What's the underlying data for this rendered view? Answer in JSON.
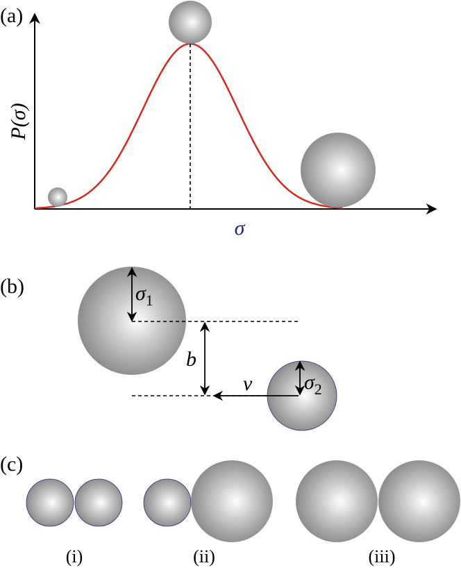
{
  "panel_a": {
    "label": "(a)",
    "y_axis_label": "P(σ)",
    "x_axis_label": "σ"
  },
  "panel_b": {
    "label": "(b)",
    "radius_1": {
      "symbol": "σ",
      "subscript": "1"
    },
    "impact_parameter": "b",
    "velocity": "v",
    "radius_2": {
      "symbol": "σ",
      "subscript": "2"
    }
  },
  "panel_c": {
    "label": "(c)",
    "cases": [
      "(i)",
      "(ii)",
      "(iii)"
    ]
  }
}
